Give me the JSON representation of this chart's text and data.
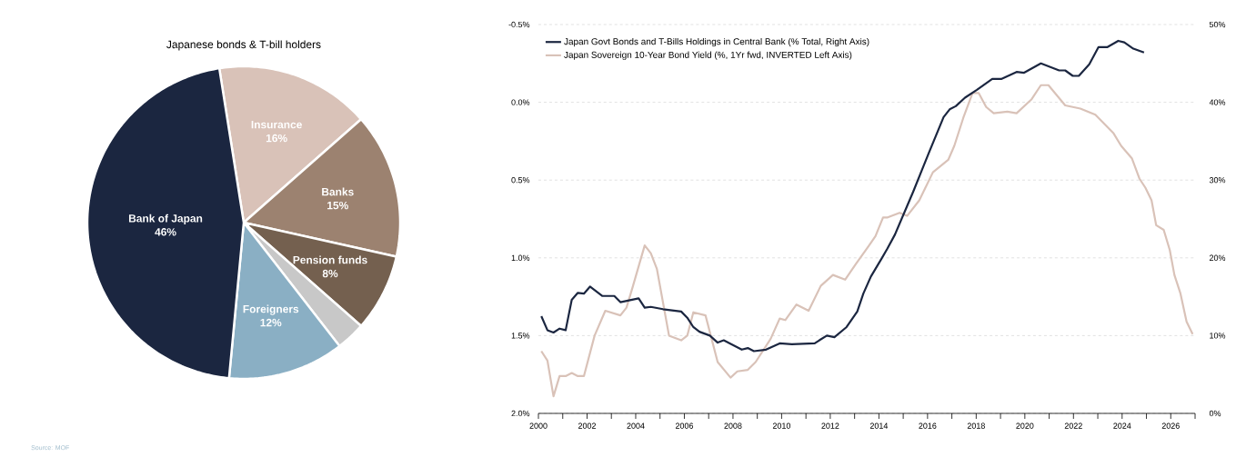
{
  "chart_data": [
    {
      "type": "pie",
      "title": "Japanese bonds & T-bill holders",
      "categories": [
        "Insurance",
        "Banks",
        "Pension funds",
        null,
        "Foreigners",
        "Bank of Japan"
      ],
      "values": [
        16,
        15,
        8,
        3,
        12,
        46
      ],
      "colors": [
        "#d9c2b8",
        "#9c8270",
        "#74604f",
        "#c8c8c8",
        "#8aafc4",
        "#1b2640"
      ],
      "value_labels": [
        "16%",
        "15%",
        "8%",
        null,
        "12%",
        "46%"
      ],
      "annotations": [
        "Source: MOF"
      ]
    },
    {
      "type": "line",
      "series": [
        {
          "name": "Japan Govt Bonds and T-Bills Holdings in Central Bank (% Total, Right Axis)",
          "color": "#1b2640",
          "axis": "y2",
          "x": [
            2000.12,
            2000.37,
            2000.62,
            2000.87,
            2001.12,
            2001.37,
            2001.62,
            2001.87,
            2002.12,
            2002.62,
            2003.12,
            2003.37,
            2004.12,
            2004.37,
            2004.62,
            2005.12,
            2005.87,
            2006.12,
            2006.37,
            2006.62,
            2007.05,
            2007.37,
            2007.62,
            2007.87,
            2008.36,
            2008.61,
            2008.86,
            2009.36,
            2009.92,
            2010.42,
            2011.36,
            2011.55,
            2011.86,
            2012.17,
            2012.67,
            2013.11,
            2013.36,
            2013.67,
            2014.11,
            2014.35,
            2014.66,
            2015.41,
            2016.04,
            2016.66,
            2016.91,
            2017.16,
            2017.54,
            2018.03,
            2018.66,
            2019.03,
            2019.66,
            2019.97,
            2020.66,
            2021.41,
            2021.66,
            2021.97,
            2022.22,
            2022.65,
            2023.03,
            2023.4,
            2023.84,
            2024.09,
            2024.46,
            2024.9
          ],
          "values": [
            12.5,
            10.7,
            10.4,
            10.9,
            10.7,
            14.6,
            15.5,
            15.4,
            16.3,
            15.1,
            15.1,
            14.3,
            14.8,
            13.6,
            13.7,
            13.4,
            13.1,
            12.3,
            11.1,
            10.5,
            10.0,
            9.1,
            9.4,
            9.0,
            8.2,
            8.4,
            8.0,
            8.2,
            9.0,
            8.9,
            9.0,
            9.4,
            10.0,
            9.8,
            11.1,
            13.1,
            15.4,
            17.6,
            19.9,
            21.2,
            23.0,
            28.5,
            33.4,
            38.1,
            39.1,
            39.5,
            40.6,
            41.6,
            43.0,
            43.0,
            43.9,
            43.8,
            45.0,
            44.1,
            44.1,
            43.4,
            43.4,
            44.9,
            47.1,
            47.1,
            47.9,
            47.7,
            46.9,
            46.4
          ]
        },
        {
          "name": "Japan Sovereign 10-Year Bond Yield (%, 1Yr fwd, INVERTED Left Axis)",
          "color": "#d9c2b8",
          "x": [
            2000.12,
            2000.37,
            2000.62,
            2000.87,
            2001.12,
            2001.37,
            2001.62,
            2001.87,
            2002.31,
            2002.75,
            2003.37,
            2003.62,
            2003.87,
            2004.37,
            2004.62,
            2004.87,
            2005.37,
            2005.87,
            2006.12,
            2006.37,
            2006.87,
            2007.37,
            2007.9,
            2008.18,
            2008.61,
            2008.93,
            2009.55,
            2009.92,
            2010.15,
            2010.61,
            2011.11,
            2011.61,
            2012.11,
            2012.61,
            2013.05,
            2013.55,
            2013.86,
            2014.17,
            2014.36,
            2014.85,
            2015.16,
            2015.66,
            2016.22,
            2016.85,
            2017.1,
            2017.47,
            2017.85,
            2018.1,
            2018.41,
            2018.72,
            2019.28,
            2019.66,
            2020.28,
            2020.66,
            2020.97,
            2021.66,
            2022.28,
            2022.9,
            2023.65,
            2023.96,
            2024.4,
            2024.71,
            2024.96,
            2025.21,
            2025.4,
            2025.71,
            2025.96,
            2026.15,
            2026.4,
            2026.65,
            2026.9
          ],
          "values": [
            1.6,
            1.66,
            1.89,
            1.76,
            1.76,
            1.74,
            1.76,
            1.76,
            1.5,
            1.34,
            1.37,
            1.32,
            1.19,
            0.92,
            0.97,
            1.07,
            1.5,
            1.53,
            1.5,
            1.35,
            1.37,
            1.67,
            1.77,
            1.73,
            1.72,
            1.67,
            1.52,
            1.39,
            1.4,
            1.3,
            1.34,
            1.18,
            1.11,
            1.14,
            1.04,
            0.93,
            0.86,
            0.74,
            0.74,
            0.71,
            0.73,
            0.63,
            0.45,
            0.37,
            0.28,
            0.1,
            -0.06,
            -0.06,
            0.03,
            0.07,
            0.06,
            0.07,
            -0.02,
            -0.11,
            -0.11,
            0.02,
            0.04,
            0.08,
            0.2,
            0.28,
            0.36,
            0.49,
            0.55,
            0.63,
            0.79,
            0.82,
            0.95,
            1.11,
            1.23,
            1.41,
            1.49
          ]
        }
      ],
      "xlim": [
        2000,
        2027
      ],
      "xticks": [
        2000,
        {
          "value": 2001,
          "label": null
        },
        2002,
        {
          "value": 2003,
          "label": null
        },
        2004,
        {
          "value": 2005,
          "label": null
        },
        2006,
        {
          "value": 2007,
          "label": null
        },
        2008,
        {
          "value": 2009,
          "label": null
        },
        2010,
        {
          "value": 2011,
          "label": null
        },
        2012,
        {
          "value": 2013,
          "label": null
        },
        2014,
        {
          "value": 2015,
          "label": null
        },
        2016,
        {
          "value": 2017,
          "label": null
        },
        2018,
        {
          "value": 2019,
          "label": null
        },
        2020,
        {
          "value": 2021,
          "label": null
        },
        2022,
        {
          "value": 2023,
          "label": null
        },
        2024,
        {
          "value": 2025,
          "label": null
        },
        2026,
        {
          "value": 2027,
          "label": null
        }
      ],
      "ylim": [
        2.0,
        -0.5
      ],
      "yticks": [
        {
          "value": -0.5,
          "label": "-0.5%"
        },
        {
          "value": 0,
          "label": "0.0%"
        },
        {
          "value": 0.5,
          "label": "0.5%"
        },
        {
          "value": 1.0,
          "label": "1.0%"
        },
        {
          "value": 1.5,
          "label": "1.5%"
        },
        {
          "value": 2.0,
          "label": "2.0%"
        }
      ],
      "y2lim": [
        0,
        50
      ],
      "y2ticks": [
        {
          "value": 0,
          "label": "0%"
        },
        {
          "value": 10,
          "label": "10%"
        },
        {
          "value": 20,
          "label": "20%"
        },
        {
          "value": 30,
          "label": "30%"
        },
        {
          "value": 40,
          "label": "40%"
        },
        {
          "value": 50,
          "label": "50%"
        }
      ],
      "grid": "y",
      "legend": "top left",
      "line_style": "solid"
    }
  ]
}
